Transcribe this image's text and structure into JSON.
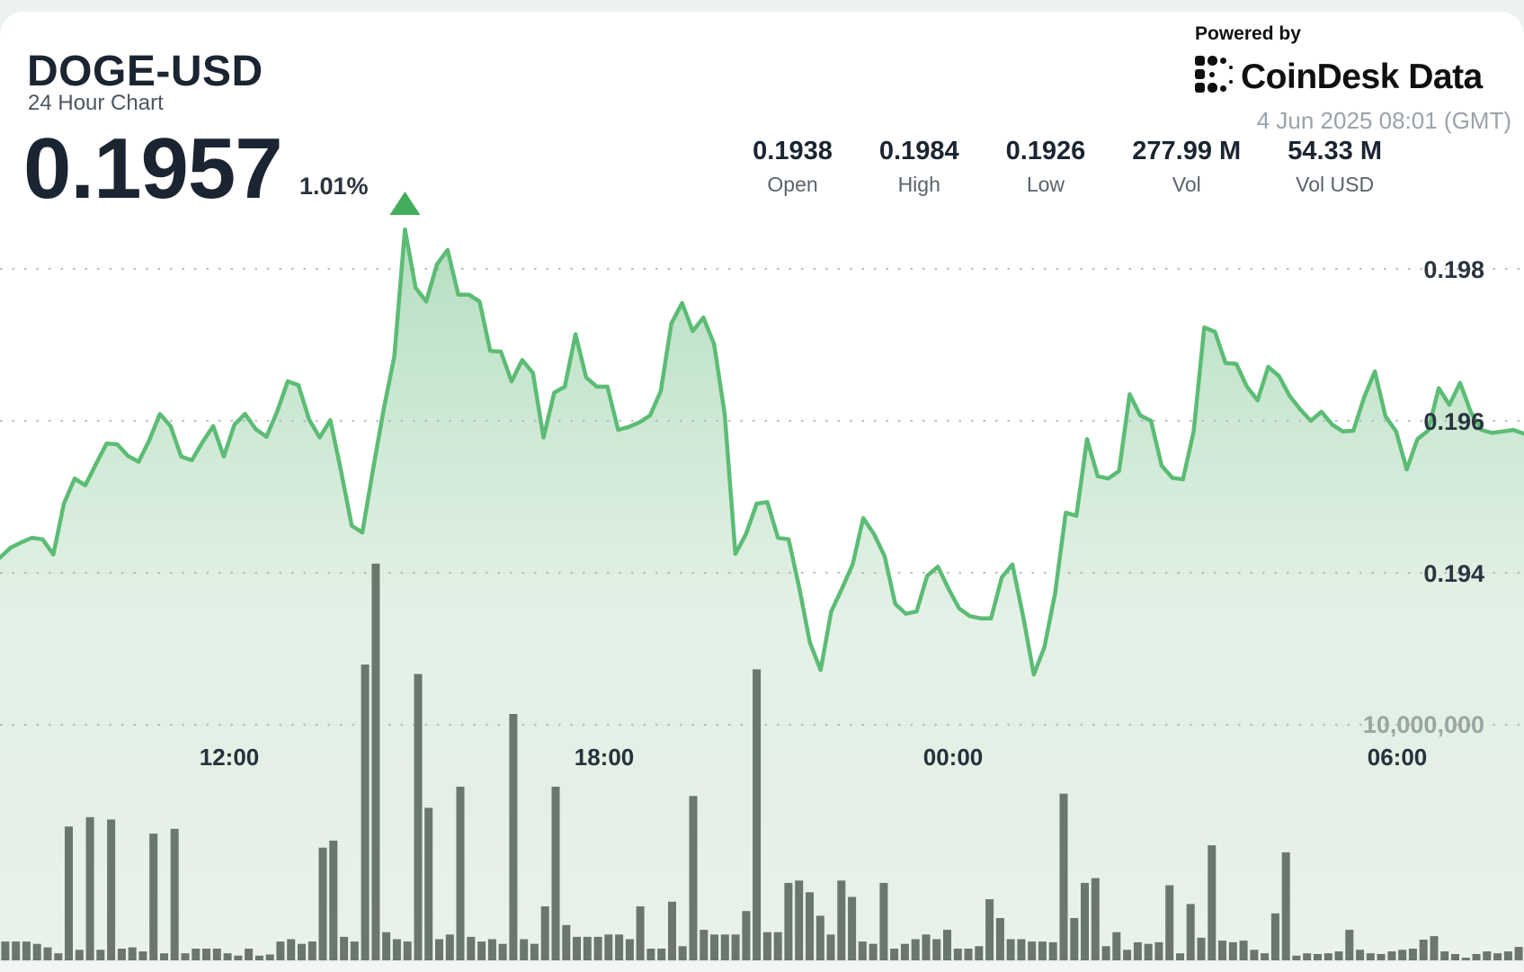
{
  "header": {
    "symbol": "DOGE-USD",
    "subtitle": "24 Hour Chart",
    "price": "0.1957",
    "change_pct": "1.01%",
    "change_direction": "up"
  },
  "powered": {
    "label": "Powered by",
    "brand": "CoinDesk Data",
    "timestamp": "4 Jun 2025 08:01 (GMT)"
  },
  "stats": [
    {
      "value": "0.1938",
      "label": "Open"
    },
    {
      "value": "0.1984",
      "label": "High"
    },
    {
      "value": "0.1926",
      "label": "Low"
    },
    {
      "value": "277.99 M",
      "label": "Vol"
    },
    {
      "value": "54.33 M",
      "label": "Vol USD"
    }
  ],
  "chart_data": {
    "type": "area",
    "title": "DOGE-USD 24 Hour Chart",
    "x_axis": {
      "ticks": [
        "12:00",
        "18:00",
        "00:00",
        "06:00"
      ],
      "span_hours": 24
    },
    "y_axis": {
      "price_ticks": [
        "0.198",
        "0.196",
        "0.194"
      ],
      "price_tick_values": [
        0.198,
        0.196,
        0.194
      ],
      "volume_tick": "10,000,000",
      "volume_tick_value_m": 10,
      "grid": "dotted"
    },
    "legend": "none",
    "series": [
      {
        "name": "price",
        "values": [
          0.1942,
          0.19433,
          0.1944,
          0.19446,
          0.19444,
          0.19424,
          0.19491,
          0.19524,
          0.19515,
          0.19543,
          0.1957,
          0.19569,
          0.19554,
          0.19546,
          0.19574,
          0.19609,
          0.19593,
          0.19553,
          0.19548,
          0.19572,
          0.19593,
          0.19553,
          0.19595,
          0.19609,
          0.19589,
          0.19579,
          0.19612,
          0.19652,
          0.19647,
          0.19602,
          0.19578,
          0.19601,
          0.19534,
          0.19462,
          0.19453,
          0.19536,
          0.19615,
          0.19685,
          0.19852,
          0.19775,
          0.19757,
          0.19806,
          0.19825,
          0.19766,
          0.19766,
          0.19757,
          0.19692,
          0.19691,
          0.19652,
          0.1968,
          0.19663,
          0.19578,
          0.19637,
          0.19645,
          0.19714,
          0.19657,
          0.19645,
          0.19645,
          0.19588,
          0.19592,
          0.19598,
          0.19607,
          0.19639,
          0.19728,
          0.19755,
          0.19718,
          0.19736,
          0.19701,
          0.19609,
          0.19425,
          0.19451,
          0.19491,
          0.19493,
          0.19446,
          0.19444,
          0.1938,
          0.19308,
          0.19272,
          0.19349,
          0.19379,
          0.19411,
          0.19472,
          0.19451,
          0.19422,
          0.19359,
          0.19346,
          0.19349,
          0.19396,
          0.19408,
          0.19379,
          0.19353,
          0.19343,
          0.1934,
          0.1934,
          0.19394,
          0.19411,
          0.19343,
          0.19266,
          0.19302,
          0.19373,
          0.19479,
          0.19475,
          0.19576,
          0.19527,
          0.19524,
          0.19534,
          0.19635,
          0.19607,
          0.196,
          0.19541,
          0.19525,
          0.19523,
          0.19586,
          0.19723,
          0.19717,
          0.19676,
          0.19675,
          0.19645,
          0.19627,
          0.19671,
          0.19659,
          0.19633,
          0.19615,
          0.196,
          0.19612,
          0.19595,
          0.19586,
          0.19587,
          0.19631,
          0.19665,
          0.19606,
          0.19586,
          0.19536,
          0.19576,
          0.19587,
          0.19643,
          0.19621,
          0.1965,
          0.19612,
          0.19588,
          0.19584,
          0.19586,
          0.19588,
          0.19583
        ]
      },
      {
        "name": "volume_millions",
        "values": [
          0.8,
          0.8,
          0.8,
          0.7,
          0.55,
          0.3,
          5.7,
          0.45,
          6.1,
          0.45,
          6.0,
          0.5,
          0.55,
          0.38,
          5.4,
          0.3,
          5.6,
          0.3,
          0.5,
          0.5,
          0.5,
          0.3,
          0.2,
          0.5,
          0.2,
          0.25,
          0.8,
          0.9,
          0.7,
          0.8,
          4.8,
          5.1,
          1.0,
          0.8,
          12.6,
          16.9,
          1.2,
          0.9,
          0.8,
          12.2,
          6.5,
          0.9,
          1.1,
          7.4,
          1.0,
          0.8,
          0.9,
          0.7,
          10.5,
          0.9,
          0.7,
          2.3,
          7.4,
          1.5,
          1.0,
          1.0,
          1.0,
          1.1,
          1.1,
          0.9,
          2.3,
          0.5,
          0.5,
          2.5,
          0.6,
          7.0,
          1.3,
          1.1,
          1.1,
          1.1,
          2.1,
          12.4,
          1.2,
          1.2,
          3.3,
          3.4,
          2.9,
          1.9,
          1.1,
          3.4,
          2.7,
          0.8,
          0.7,
          3.3,
          0.5,
          0.7,
          0.9,
          1.1,
          0.9,
          1.3,
          0.5,
          0.5,
          0.6,
          2.6,
          1.8,
          0.9,
          0.9,
          0.8,
          0.8,
          0.77,
          7.1,
          1.8,
          3.3,
          3.5,
          0.6,
          1.2,
          0.45,
          0.77,
          0.7,
          0.77,
          3.2,
          0.3,
          2.4,
          0.96,
          4.9,
          0.84,
          0.77,
          0.84,
          0.45,
          0.3,
          2.0,
          4.6,
          0.2,
          0.3,
          0.27,
          0.3,
          0.38,
          1.3,
          0.45,
          0.3,
          0.27,
          0.38,
          0.45,
          0.5,
          0.88,
          1.03,
          0.38,
          0.27,
          0.11,
          0.27,
          0.38,
          0.3,
          0.38,
          0.57
        ]
      }
    ],
    "annotations": {
      "high_marker": "triangle-up-at-maximum"
    },
    "colors": {
      "line": "#5cbc75",
      "fill_top": "#83c996",
      "fill_bottom": "#e9f1ea",
      "volume_bar": "#5e6d62",
      "gridline": "#aeb7bb",
      "marker": "#43ad5c"
    }
  }
}
